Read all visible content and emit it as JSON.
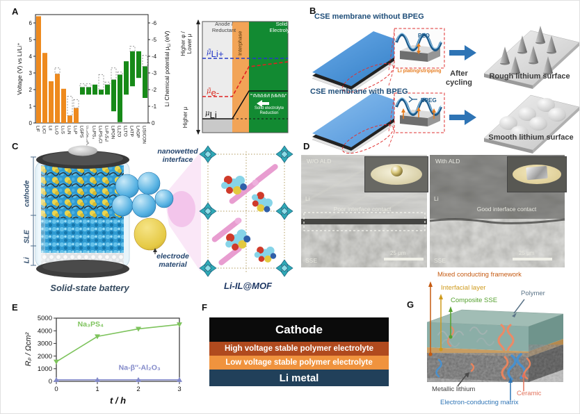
{
  "letters": {
    "A": "A",
    "B": "B",
    "C": "C",
    "D": "D",
    "E": "E",
    "F": "F",
    "G": "G"
  },
  "chart_data": [
    {
      "type": "bar",
      "panel": "A",
      "ylabel_left": "Voltage (V) vs Li/Li⁺",
      "ylabel_right_parts": [
        "Li Chemical potential μ",
        "Li",
        " (eV)"
      ],
      "ylim": [
        0,
        6.5
      ],
      "yticks_left": [
        0,
        1,
        2,
        3,
        4,
        5,
        6
      ],
      "yticks_right": [
        "0",
        "-1",
        "-2",
        "-3",
        "-4",
        "-5",
        "-6"
      ],
      "color_binary": "#ee8a1e",
      "color_sse": "#178a18",
      "dashed_color": "#999999",
      "bars": [
        {
          "label": "LiF",
          "low": 0,
          "high": 6.4
        },
        {
          "label": "LiCl",
          "low": 0,
          "high": 4.2
        },
        {
          "label": "LiI",
          "low": 0,
          "high": 2.5
        },
        {
          "label": "Li₂O",
          "low": 0,
          "high": 2.95,
          "dashed": 3.3
        },
        {
          "label": "Li₂S",
          "low": 0,
          "high": 2.05
        },
        {
          "label": "Li₃N",
          "low": 0,
          "high": 0.45,
          "dashed": 1.6
        },
        {
          "label": "Li₃P",
          "low": 0,
          "high": 0.9,
          "dashed": 1.4
        },
        {
          "label": "LGPS",
          "low": 1.7,
          "high": 2.15,
          "dashed": 2.35,
          "sse": true
        },
        {
          "label": "Li₃.₂₅Ge₀.₂₅P₀.₇₅S₄",
          "low": 1.7,
          "high": 2.15,
          "dashed": 2.35,
          "sse": true,
          "small": true
        },
        {
          "label": "Li₃PS₄",
          "low": 1.7,
          "high": 2.3,
          "sse": true
        },
        {
          "label": "Li₆PS₅Cl",
          "low": 1.7,
          "high": 2.0,
          "dashed": 2.9,
          "sse": true
        },
        {
          "label": "Li₇P₂S₈I",
          "low": 1.7,
          "high": 2.3,
          "dashed": 2.45,
          "sse": true
        },
        {
          "label": "LiPON",
          "low": 0.7,
          "high": 2.6,
          "dashed": 3.3,
          "sse": true
        },
        {
          "label": "LLZO",
          "low": 0.05,
          "high": 2.9,
          "dashed": 3.05,
          "sse": true
        },
        {
          "label": "LLTO",
          "low": 1.7,
          "high": 3.7,
          "sse": true
        },
        {
          "label": "LATP",
          "low": 2.2,
          "high": 4.3,
          "dashed": 4.6,
          "sse": true
        },
        {
          "label": "LAGP",
          "low": 2.7,
          "high": 4.3,
          "sse": true
        },
        {
          "label": "LISICON",
          "low": 1.5,
          "high": 3.4,
          "dashed": 4.05,
          "sse": true
        }
      ]
    },
    {
      "type": "line",
      "panel": "E",
      "xlabel": "t / h",
      "ylabel": "Rₚ / Ωcm²",
      "xlim": [
        0,
        3
      ],
      "ylim": [
        0,
        5000
      ],
      "xticks": [
        0,
        1,
        2,
        3
      ],
      "yticks": [
        0,
        1000,
        2000,
        3000,
        4000,
        5000
      ],
      "series": [
        {
          "name": "Na₃PS₄",
          "color": "#7dc35c",
          "marker": "down",
          "x": [
            0,
            1,
            2,
            3
          ],
          "y": [
            1550,
            3550,
            4150,
            4500
          ],
          "label_pos": {
            "x": 0.52,
            "y": 4350
          }
        },
        {
          "name": "Na-β″-Al₂O₃",
          "color": "#8289c9",
          "marker": "up",
          "x": [
            0,
            1,
            2,
            3
          ],
          "y": [
            120,
            120,
            120,
            120
          ],
          "label_pos": {
            "x": 1.52,
            "y": 900
          }
        }
      ]
    }
  ],
  "panelA": {
    "diagram": {
      "col_anode": "Anode /\nReductant",
      "col_interphase": "Interphase",
      "col_se": "Solid\nElectrolyte",
      "mu_ion_base": "μ̃",
      "mu_ion_sub": "Li+",
      "mu_e_base": "μ̃",
      "mu_e_sub": "e-",
      "mu_li_base": "μ",
      "mu_li_sub": "Li",
      "reduction_potential": "Reduction potential",
      "se_reduction": "Solid electrolyte\nReduction",
      "axis_top": "Higher φ /\nLower μ",
      "axis_bottom": "Higher μ"
    }
  },
  "panelB": {
    "title_top": "CSE membrane without BPEG",
    "title_bottom": "CSE membrane with BPEG",
    "inset_top_label": "PEO",
    "inset_top_caption": "Li plating/stripping",
    "inset_bottom_label": "BPEG",
    "after_cycling": "After\ncycling",
    "result_top": "Rough lithium surface",
    "result_bottom": "Smooth lithium surface"
  },
  "panelC": {
    "layer_cathode": "cathode",
    "layer_sle": "SLE",
    "layer_li": "Li",
    "battery_caption": "Solid-state battery",
    "interface_label": "nanowetted\ninterface",
    "electrode_label": "electrode\nmaterial",
    "mof_caption": "Li-IL@MOF"
  },
  "panelD": {
    "left": {
      "tag": "W/O ALD",
      "li": "Li",
      "note": "Poor interface contact",
      "sse": "SSE",
      "scale": "25 μm"
    },
    "right": {
      "tag": "With ALD",
      "li": "Li",
      "note": "Good interface contact",
      "sse": "SSE",
      "scale": "25 μm"
    }
  },
  "panelF": {
    "layers": [
      {
        "label": "Cathode",
        "color": "#0b0b0b"
      },
      {
        "label": "High voltage stable polymer electrolyte",
        "color": "#b04a1e"
      },
      {
        "label": "Low voltage stable polymer electrolyte",
        "color": "#f0933e"
      },
      {
        "label": "Li metal",
        "color": "#21405a"
      }
    ]
  },
  "panelG": {
    "labels": {
      "mixed": {
        "text": "Mixed conducting framework",
        "color": "#c55a11"
      },
      "interfacial": {
        "text": "Interfacial layer",
        "color": "#cf9a1c"
      },
      "composite": {
        "text": "Composite SSE",
        "color": "#55a02e"
      },
      "polymer": {
        "text": "Polymer",
        "color": "#5b7488"
      },
      "lithium": {
        "text": "Metallic lithium",
        "color": "#404040"
      },
      "matrix": {
        "text": "Electron-conducting matrix",
        "color": "#2e74b5"
      },
      "ceramic": {
        "text": "Ceramic",
        "color": "#e2725b"
      }
    }
  }
}
